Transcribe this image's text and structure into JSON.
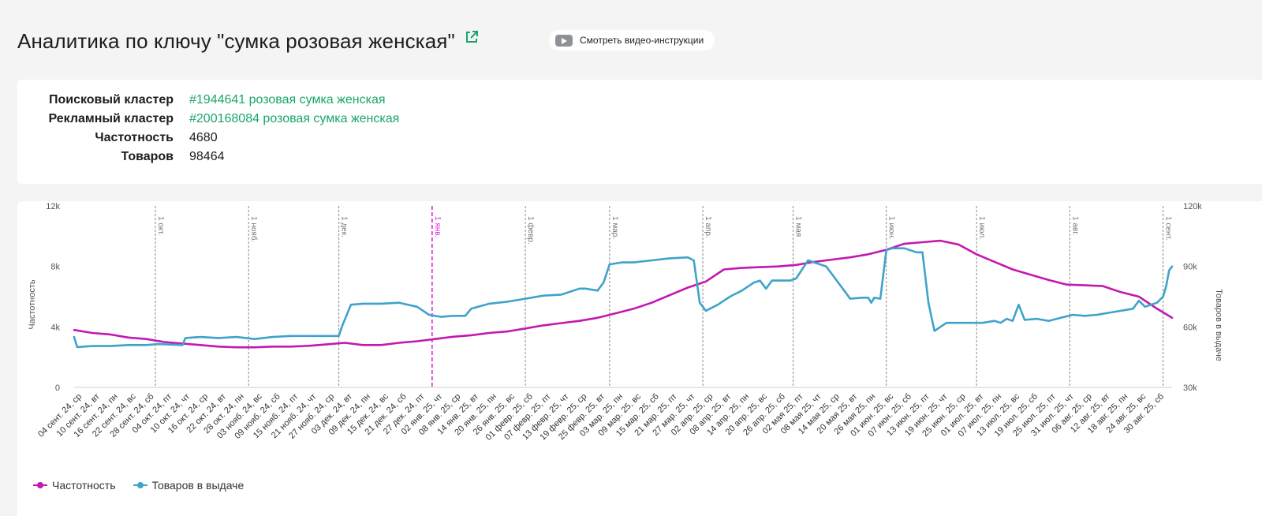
{
  "header": {
    "title": "Аналитика по ключу \"сумка розовая женская\"",
    "video_button": "Смотреть видео-инструкции"
  },
  "info": {
    "search_cluster_label": "Поисковый кластер",
    "search_cluster_value": "#1944641 розовая сумка женская",
    "ad_cluster_label": "Рекламный кластер",
    "ad_cluster_value": "#200168084 розовая сумка женская",
    "frequency_label": "Частотность",
    "frequency_value": "4680",
    "products_label": "Товаров",
    "products_value": "98464"
  },
  "colors": {
    "frequency": "#c219b0",
    "products": "#3fa3c9",
    "accent": "#1aa56a",
    "current_month": "#e020e0"
  },
  "legend": {
    "frequency": "Частотность",
    "products": "Товаров в выдаче"
  },
  "chart_data": {
    "type": "line",
    "ylabel_left": "Частотность",
    "ylabel_right": "Товаров в выдаче",
    "y_left_ticks": [
      "0",
      "4k",
      "8k",
      "12k"
    ],
    "y_right_ticks": [
      "30k",
      "60k",
      "90k",
      "120k"
    ],
    "ylim_left": [
      0,
      12000
    ],
    "ylim_right": [
      30000,
      120000
    ],
    "x_range_days": [
      0,
      365
    ],
    "x_tick_labels": [
      "04 сент. 24, ср",
      "10 сент. 24, вт",
      "16 сент. 24, пн",
      "22 сент. 24, вс",
      "28 сент. 24, сб",
      "04 окт. 24, пт",
      "10 окт. 24, чт",
      "16 окт. 24, ср",
      "22 окт. 24, вт",
      "28 окт. 24, пн",
      "03 нояб. 24, вс",
      "09 нояб. 24, сб",
      "15 нояб. 24, пт",
      "21 нояб. 24, чт",
      "27 нояб. 24, ср",
      "03 дек. 24, вт",
      "09 дек. 24, пн",
      "15 дек. 24, вс",
      "21 дек. 24, сб",
      "27 дек. 24, пт",
      "02 янв. 25, чт",
      "08 янв. 25, ср",
      "14 янв. 25, вт",
      "20 янв. 25, пн",
      "26 янв. 25, вс",
      "01 февр. 25, сб",
      "07 февр. 25, пт",
      "13 февр. 25, чт",
      "19 февр. 25, ср",
      "25 февр. 25, вт",
      "03 мар. 25, пн",
      "09 мар. 25, вс",
      "15 мар. 25, сб",
      "21 мар. 25, пт",
      "27 мар. 25, чт",
      "02 апр. 25, ср",
      "08 апр. 25, вт",
      "14 апр. 25, пн",
      "20 апр. 25, вс",
      "26 апр. 25, сб",
      "02 мая 25, пт",
      "08 мая 25, чт",
      "14 мая 25, ср",
      "20 мая 25, вт",
      "26 мая 25, пн",
      "01 июн. 25, вс",
      "07 июн. 25, сб",
      "13 июн. 25, пт",
      "19 июн. 25, чт",
      "25 июн. 25, ср",
      "01 июл. 25, вт",
      "07 июл. 25, пн",
      "13 июл. 25, вс",
      "19 июл. 25, сб",
      "25 июл. 25, пт",
      "31 июл. 25, чт",
      "06 авг. 25, ср",
      "12 авг. 25, вт",
      "18 авг. 25, пн",
      "24 авг. 25, вс",
      "30 авг. 25, сб"
    ],
    "month_markers": [
      {
        "label": "1 окт.",
        "day": 27
      },
      {
        "label": "1 нояб.",
        "day": 58
      },
      {
        "label": "1 дек.",
        "day": 88
      },
      {
        "label": "1 янв.",
        "day": 119,
        "current": true
      },
      {
        "label": "1 февр.",
        "day": 150
      },
      {
        "label": "1 мар.",
        "day": 178
      },
      {
        "label": "1 апр.",
        "day": 209
      },
      {
        "label": "1 мая",
        "day": 239
      },
      {
        "label": "1 июн.",
        "day": 270
      },
      {
        "label": "1 июл.",
        "day": 300
      },
      {
        "label": "1 авг.",
        "day": 331
      },
      {
        "label": "1 сент.",
        "day": 362
      }
    ],
    "series": [
      {
        "name": "Частотность",
        "axis": "left",
        "x": [
          0,
          6,
          12,
          18,
          24,
          30,
          36,
          42,
          48,
          54,
          60,
          66,
          72,
          78,
          84,
          90,
          96,
          102,
          108,
          114,
          120,
          126,
          132,
          138,
          144,
          150,
          156,
          162,
          168,
          174,
          180,
          186,
          192,
          198,
          204,
          210,
          216,
          222,
          228,
          234,
          240,
          246,
          252,
          258,
          264,
          270,
          276,
          282,
          288,
          294,
          300,
          306,
          312,
          318,
          324,
          330,
          336,
          342,
          348,
          354,
          360,
          365
        ],
        "values": [
          3800,
          3600,
          3500,
          3300,
          3200,
          3000,
          2900,
          2800,
          2700,
          2650,
          2650,
          2700,
          2700,
          2750,
          2850,
          2950,
          2800,
          2800,
          2950,
          3050,
          3200,
          3350,
          3450,
          3600,
          3700,
          3900,
          4100,
          4250,
          4400,
          4600,
          4900,
          5200,
          5600,
          6100,
          6600,
          7000,
          7800,
          7900,
          7950,
          8000,
          8100,
          8300,
          8450,
          8600,
          8800,
          9100,
          9500,
          9600,
          9700,
          9450,
          8800,
          8300,
          7800,
          7450,
          7100,
          6800,
          6750,
          6700,
          6300,
          6000,
          5200,
          4600
        ]
      },
      {
        "name": "Товаров в выдаче",
        "axis": "right",
        "x": [
          0,
          1,
          6,
          12,
          18,
          24,
          28,
          36,
          37,
          42,
          48,
          54,
          60,
          66,
          72,
          78,
          84,
          88,
          89,
          92,
          96,
          102,
          108,
          114,
          118,
          122,
          126,
          128,
          130,
          132,
          138,
          144,
          150,
          156,
          162,
          168,
          170,
          174,
          176,
          178,
          182,
          186,
          192,
          198,
          204,
          206,
          208,
          210,
          212,
          214,
          218,
          222,
          226,
          228,
          230,
          232,
          234,
          236,
          238,
          240,
          244,
          246,
          248,
          250,
          252,
          256,
          258,
          262,
          264,
          265,
          266,
          268,
          270,
          272,
          276,
          278,
          280,
          282,
          284,
          286,
          290,
          294,
          298,
          302,
          306,
          308,
          310,
          312,
          314,
          316,
          320,
          324,
          328,
          332,
          336,
          340,
          344,
          348,
          352,
          354,
          356,
          358,
          360,
          362,
          363,
          364,
          365
        ],
        "values": [
          55000,
          50000,
          50500,
          50500,
          51000,
          51000,
          51500,
          51000,
          54500,
          55000,
          54500,
          55000,
          54000,
          55000,
          55500,
          55500,
          55500,
          55500,
          60000,
          71000,
          71500,
          71500,
          72000,
          70000,
          66000,
          65000,
          65500,
          65500,
          65500,
          69000,
          71500,
          72500,
          74000,
          75500,
          76000,
          79000,
          79000,
          78000,
          82000,
          91000,
          92000,
          92000,
          93000,
          94000,
          94500,
          93000,
          72000,
          68000,
          69500,
          71000,
          75000,
          78000,
          82000,
          83000,
          79000,
          83000,
          83000,
          83000,
          83000,
          84000,
          93000,
          92000,
          91000,
          90000,
          86000,
          78000,
          74000,
          74500,
          74500,
          72000,
          74500,
          74000,
          98000,
          99000,
          99000,
          98000,
          97000,
          97000,
          72000,
          58000,
          62000,
          62000,
          62000,
          62000,
          63000,
          62000,
          64000,
          63000,
          71000,
          63500,
          64000,
          63000,
          64500,
          66000,
          65500,
          66000,
          67000,
          68000,
          69000,
          73000,
          70000,
          71000,
          72000,
          75000,
          80000,
          88000,
          90000
        ]
      }
    ]
  }
}
